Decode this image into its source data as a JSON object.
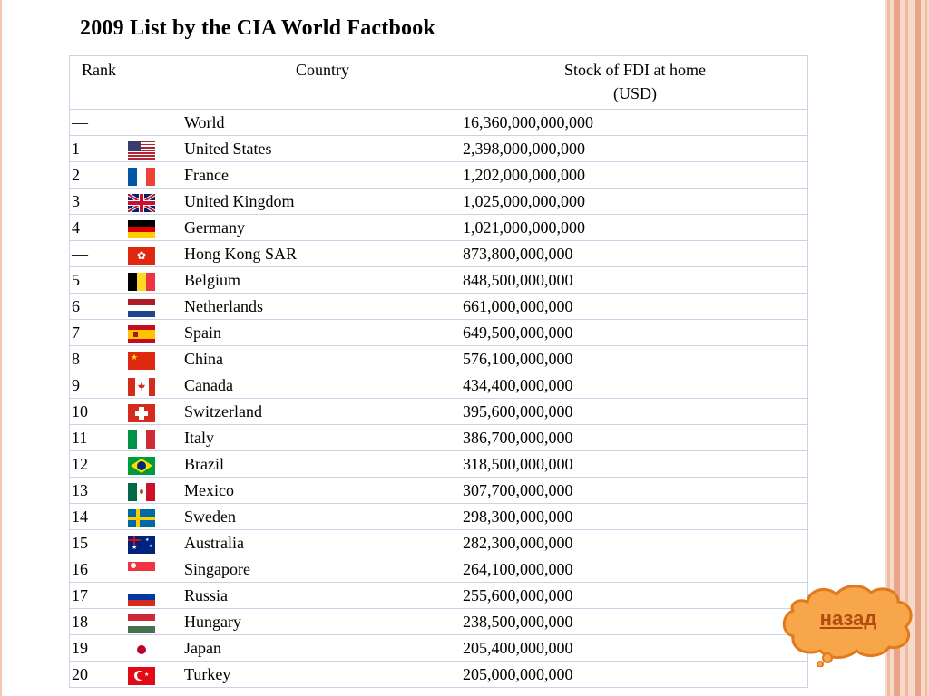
{
  "title": "2009 List by the CIA World Factbook",
  "headers": {
    "rank": "Rank",
    "country": "Country",
    "stock_line1": "Stock of FDI at home",
    "stock_line2": "(USD)"
  },
  "rows": [
    {
      "rank": "—",
      "flag": "none",
      "country": "World",
      "value": "16,360,000,000,000"
    },
    {
      "rank": "1",
      "flag": "us",
      "country": "United States",
      "value": "2,398,000,000,000"
    },
    {
      "rank": "2",
      "flag": "fr",
      "country": "France",
      "value": "1,202,000,000,000"
    },
    {
      "rank": "3",
      "flag": "gb",
      "country": "United Kingdom",
      "value": "1,025,000,000,000"
    },
    {
      "rank": "4",
      "flag": "de",
      "country": "Germany",
      "value": "1,021,000,000,000"
    },
    {
      "rank": "—",
      "flag": "hk",
      "country": "Hong Kong SAR",
      "value": "873,800,000,000"
    },
    {
      "rank": "5",
      "flag": "be",
      "country": "Belgium",
      "value": "848,500,000,000"
    },
    {
      "rank": "6",
      "flag": "nl",
      "country": "Netherlands",
      "value": "661,000,000,000"
    },
    {
      "rank": "7",
      "flag": "es",
      "country": "Spain",
      "value": "649,500,000,000"
    },
    {
      "rank": "8",
      "flag": "cn",
      "country": "China",
      "value": "576,100,000,000"
    },
    {
      "rank": "9",
      "flag": "ca",
      "country": "Canada",
      "value": "434,400,000,000"
    },
    {
      "rank": "10",
      "flag": "ch",
      "country": "Switzerland",
      "value": "395,600,000,000"
    },
    {
      "rank": "11",
      "flag": "it",
      "country": "Italy",
      "value": "386,700,000,000"
    },
    {
      "rank": "12",
      "flag": "br",
      "country": "Brazil",
      "value": "318,500,000,000"
    },
    {
      "rank": "13",
      "flag": "mx",
      "country": "Mexico",
      "value": "307,700,000,000"
    },
    {
      "rank": "14",
      "flag": "se",
      "country": "Sweden",
      "value": "298,300,000,000"
    },
    {
      "rank": "15",
      "flag": "au",
      "country": "Australia",
      "value": "282,300,000,000"
    },
    {
      "rank": "16",
      "flag": "sg",
      "country": "Singapore",
      "value": "264,100,000,000"
    },
    {
      "rank": "17",
      "flag": "ru",
      "country": "Russia",
      "value": "255,600,000,000"
    },
    {
      "rank": "18",
      "flag": "hu",
      "country": "Hungary",
      "value": "238,500,000,000"
    },
    {
      "rank": "19",
      "flag": "jp",
      "country": "Japan",
      "value": "205,400,000,000"
    },
    {
      "rank": "20",
      "flag": "tr",
      "country": "Turkey",
      "value": "205,000,000,000"
    }
  ],
  "back_button": {
    "label": "назад",
    "fill": "#f7a64a",
    "stroke": "#e07a1c",
    "text_color": "#b04a10"
  },
  "colors": {
    "grid": "#c9d3e6",
    "stripes": "#f0b9a0"
  }
}
